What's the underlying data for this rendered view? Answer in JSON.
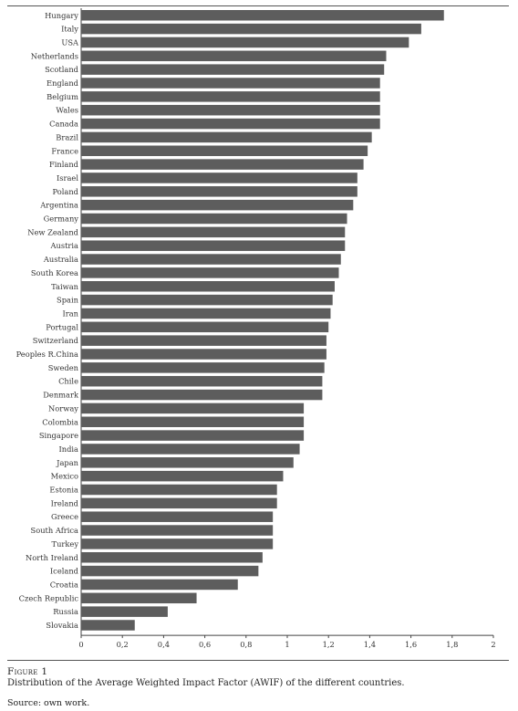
{
  "figure": {
    "label": "Figure 1",
    "caption": "Distribution of the Average Weighted Impact Factor (AWIF) of the different countries.",
    "source": "Source: own work."
  },
  "chart_data": {
    "type": "bar",
    "orientation": "horizontal",
    "categories": [
      "Hungary",
      "Italy",
      "USA",
      "Netherlands",
      "Scotland",
      "England",
      "Belgium",
      "Wales",
      "Canada",
      "Brazil",
      "France",
      "Finland",
      "Israel",
      "Poland",
      "Argentina",
      "Germany",
      "New Zealand",
      "Austria",
      "Australia",
      "South Korea",
      "Taiwan",
      "Spain",
      "Iran",
      "Portugal",
      "Switzerland",
      "Peoples R.China",
      "Sweden",
      "Chile",
      "Denmark",
      "Norway",
      "Colombia",
      "Singapore",
      "India",
      "Japan",
      "Mexico",
      "Estonia",
      "Ireland",
      "Greece",
      "South Africa",
      "Turkey",
      "North Ireland",
      "Iceland",
      "Croatia",
      "Czech Republic",
      "Russia",
      "Slovakia"
    ],
    "values": [
      1.76,
      1.65,
      1.59,
      1.48,
      1.47,
      1.45,
      1.45,
      1.45,
      1.45,
      1.41,
      1.39,
      1.37,
      1.34,
      1.34,
      1.32,
      1.29,
      1.28,
      1.28,
      1.26,
      1.25,
      1.23,
      1.22,
      1.21,
      1.2,
      1.19,
      1.19,
      1.18,
      1.17,
      1.17,
      1.08,
      1.08,
      1.08,
      1.06,
      1.03,
      0.98,
      0.95,
      0.95,
      0.93,
      0.93,
      0.93,
      0.88,
      0.86,
      0.76,
      0.56,
      0.42,
      0.26
    ],
    "xticks": [
      "0",
      "0,2",
      "0,4",
      "0,6",
      "0,8",
      "1",
      "1,2",
      "1,4",
      "1,6",
      "1,8",
      "2"
    ],
    "xlim": [
      0,
      2
    ],
    "grid": false,
    "colors": {
      "bar": "#5d5d5d"
    }
  }
}
